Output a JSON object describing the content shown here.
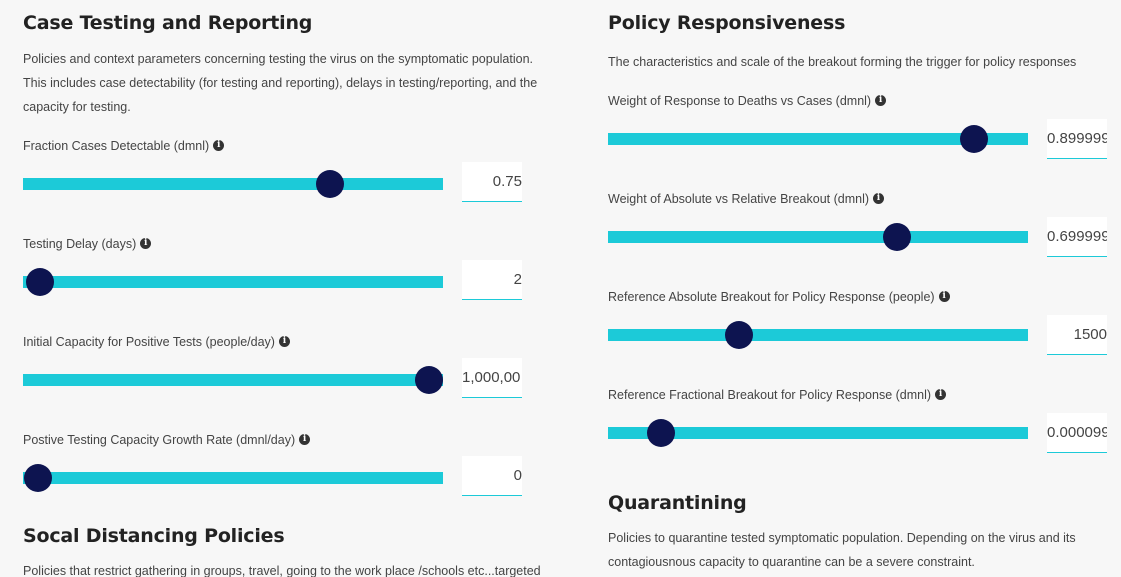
{
  "left": {
    "case_testing": {
      "title": "Case Testing and Reporting",
      "desc_lines": [
        "Policies and context parameters concerning testing the virus on the symptomatic population.",
        "This includes case detectability (for testing and reporting), delays in testing/reporting, and the",
        "capacity for testing."
      ],
      "params": [
        {
          "label": "Fraction Cases Detectable (dmnl)",
          "value": "0.75",
          "level": 0.73
        },
        {
          "label": "Testing Delay (days)",
          "value": "2",
          "level": 0.04
        },
        {
          "label": "Initial Capacity for Positive Tests (people/day)",
          "value": "1,000,00",
          "level": 0.966
        },
        {
          "label": "Postive Testing Capacity Growth Rate (dmnl/day)",
          "value": "0",
          "level": 0.035
        }
      ]
    },
    "social_distancing": {
      "title": "Socal Distancing Policies",
      "desc_line": "Policies that restrict gathering in groups, travel, going to the work place /schools etc...targeted"
    }
  },
  "right": {
    "policy": {
      "title": "Policy Responsiveness",
      "desc_line": "The characteristics and scale of the breakout forming the trigger for policy responses",
      "params": [
        {
          "label": "Weight of Response to Deaths vs Cases (dmnl)",
          "value": "0.899999",
          "level": 0.872
        },
        {
          "label": "Weight of Absolute vs Relative Breakout (dmnl)",
          "value": "0.699999",
          "level": 0.688
        },
        {
          "label": "Reference Absolute Breakout for Policy Response (people)",
          "value": "1500",
          "level": 0.313
        },
        {
          "label": "Reference Fractional Breakout for Policy Response (dmnl)",
          "value": "0.000099",
          "level": 0.126
        }
      ]
    },
    "quarantining": {
      "title": "Quarantining",
      "desc_lines": [
        "Policies to quarantine tested symptomatic population. Depending on the virus and its",
        "contagiousnous capacity to quarantine can be a severe constraint."
      ]
    }
  },
  "icons": {
    "info": "i"
  },
  "colors": {
    "track": "#1ccad8",
    "thumb": "#0d1450",
    "background": "#f7f7f7"
  }
}
